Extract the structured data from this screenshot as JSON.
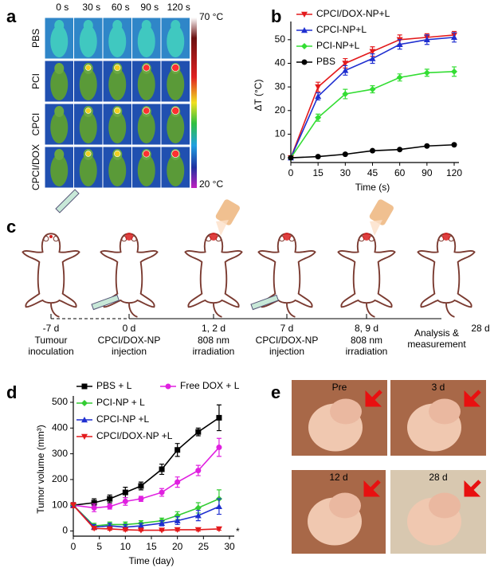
{
  "panel_labels": [
    "a",
    "b",
    "c",
    "d",
    "e"
  ],
  "thermal": {
    "times": [
      "0 s",
      "30 s",
      "60 s",
      "90 s",
      "120 s"
    ],
    "rows": [
      "PBS",
      "PCI",
      "CPCI",
      "CPCI/DOX"
    ],
    "scale_max": "70 °C",
    "scale_min": "20 °C"
  },
  "chart_data": [
    {
      "type": "line",
      "xlabel": "Time (s)",
      "ylabel": "ΔT (°C)",
      "categories": [
        "0",
        "15",
        "30",
        "45",
        "60",
        "90",
        "120"
      ],
      "ylim": [
        -2,
        55
      ],
      "yticks": [
        0,
        10,
        20,
        30,
        40,
        50
      ],
      "series": [
        {
          "name": "CPCI/DOX-NP+L",
          "color": "#e31a1c",
          "marker": "triangle-down",
          "values": [
            0,
            30,
            40,
            45,
            50,
            51,
            52
          ],
          "errors": [
            0,
            2,
            2,
            2,
            2,
            1.5,
            1.5
          ]
        },
        {
          "name": "CPCI-NP+L",
          "color": "#1f2fd0",
          "marker": "triangle-up",
          "values": [
            0,
            26,
            37,
            42,
            48,
            50,
            51
          ],
          "errors": [
            0,
            1.5,
            2,
            2,
            2,
            2,
            2
          ]
        },
        {
          "name": "PCI-NP+L",
          "color": "#33dd33",
          "marker": "diamond",
          "values": [
            0,
            17,
            27,
            29,
            34,
            36,
            36.5
          ],
          "errors": [
            0,
            1.5,
            2,
            1.5,
            1.5,
            1.5,
            2
          ]
        },
        {
          "name": "PBS",
          "color": "#000000",
          "marker": "circle",
          "values": [
            0,
            0.5,
            1.5,
            3,
            3.5,
            5,
            5.5
          ],
          "errors": [
            0,
            0.3,
            0.3,
            0.3,
            0.3,
            0.3,
            0.3
          ]
        }
      ]
    },
    {
      "type": "line",
      "xlabel": "Time (day)",
      "ylabel": "Tumor volume (mm³)",
      "annotation": "*",
      "x": [
        0,
        4,
        7,
        10,
        13,
        17,
        20,
        24,
        28
      ],
      "xlim": [
        0,
        30
      ],
      "xticks": [
        0,
        5,
        10,
        15,
        20,
        25,
        30
      ],
      "ylim": [
        -20,
        500
      ],
      "yticks": [
        0,
        100,
        200,
        300,
        400,
        500
      ],
      "series": [
        {
          "name": "PBS + L",
          "color": "#000000",
          "marker": "square",
          "values": [
            100,
            110,
            125,
            150,
            175,
            240,
            315,
            385,
            440
          ],
          "errors": [
            10,
            15,
            15,
            20,
            15,
            20,
            25,
            15,
            50
          ]
        },
        {
          "name": "Free DOX + L",
          "color": "#e020e0",
          "marker": "circle",
          "values": [
            100,
            90,
            95,
            115,
            125,
            150,
            190,
            235,
            325
          ],
          "errors": [
            10,
            15,
            10,
            15,
            10,
            15,
            20,
            20,
            35
          ]
        },
        {
          "name": "PCI-NP + L",
          "color": "#33cc33",
          "marker": "diamond",
          "values": [
            100,
            20,
            25,
            25,
            30,
            40,
            60,
            90,
            125
          ],
          "errors": [
            10,
            10,
            10,
            10,
            10,
            10,
            15,
            20,
            35
          ]
        },
        {
          "name": "CPCI-NP +L",
          "color": "#1f2fd0",
          "marker": "triangle-up",
          "values": [
            100,
            15,
            20,
            15,
            20,
            30,
            40,
            60,
            95
          ],
          "errors": [
            10,
            10,
            10,
            10,
            10,
            10,
            15,
            20,
            30
          ]
        },
        {
          "name": "CPCI/DOX-NP +L",
          "color": "#e31a1c",
          "marker": "triangle-down",
          "values": [
            100,
            10,
            8,
            5,
            3,
            3,
            5,
            5,
            8
          ],
          "errors": [
            10,
            5,
            5,
            5,
            3,
            3,
            5,
            5,
            5
          ]
        }
      ]
    }
  ],
  "timeline": {
    "steps": [
      {
        "day": "-7 d",
        "lines": [
          "Tumour",
          "inoculation"
        ]
      },
      {
        "day": "0 d",
        "lines": [
          "CPCI/DOX-NP",
          "injection"
        ]
      },
      {
        "day": "1, 2 d",
        "lines": [
          "808 nm",
          "irradiation"
        ]
      },
      {
        "day": "7 d",
        "lines": [
          "CPCI/DOX-NP",
          "injection"
        ]
      },
      {
        "day": "8, 9 d",
        "lines": [
          "808 nm",
          "irradiation"
        ]
      },
      {
        "lines": [
          "Analysis &",
          "measurement"
        ]
      },
      {
        "day": "28 d"
      }
    ]
  },
  "photos": [
    "Pre",
    "3 d",
    "12 d",
    "28 d"
  ]
}
